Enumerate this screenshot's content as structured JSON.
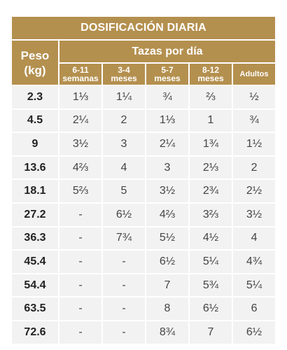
{
  "title": "DOSIFICACIÓN DIARIA",
  "peso_header": {
    "line1": "Peso",
    "line2": "(kg)"
  },
  "tazas_header": "Tazas por día",
  "columns": [
    {
      "line1": "6-11",
      "line2": "semanas"
    },
    {
      "line1": "3-4",
      "line2": "meses"
    },
    {
      "line1": "5-7",
      "line2": "meses"
    },
    {
      "line1": "8-12",
      "line2": "meses"
    },
    {
      "line1": "Adultos",
      "line2": ""
    }
  ],
  "rows": [
    {
      "peso": "2.3",
      "values": [
        "1⅓",
        "1¼",
        "¾",
        "⅔",
        "½"
      ]
    },
    {
      "peso": "4.5",
      "values": [
        "2¼",
        "2",
        "1⅓",
        "1",
        "¾"
      ]
    },
    {
      "peso": "9",
      "values": [
        "3½",
        "3",
        "2¼",
        "1¾",
        "1½"
      ]
    },
    {
      "peso": "13.6",
      "values": [
        "4⅔",
        "4",
        "3",
        "2⅓",
        "2"
      ]
    },
    {
      "peso": "18.1",
      "values": [
        "5⅔",
        "5",
        "3½",
        "2¾",
        "2½"
      ]
    },
    {
      "peso": "27.2",
      "values": [
        "-",
        "6½",
        "4⅔",
        "3⅔",
        "3½"
      ]
    },
    {
      "peso": "36.3",
      "values": [
        "-",
        "7¾",
        "5½",
        "4½",
        "4"
      ]
    },
    {
      "peso": "45.4",
      "values": [
        "-",
        "-",
        "6½",
        "5¼",
        "4¾"
      ]
    },
    {
      "peso": "54.4",
      "values": [
        "-",
        "-",
        "7",
        "5¾",
        "5¼"
      ]
    },
    {
      "peso": "63.5",
      "values": [
        "-",
        "-",
        "8",
        "6½",
        "6"
      ]
    },
    {
      "peso": "72.6",
      "values": [
        "-",
        "-",
        "8¾",
        "7",
        "6½"
      ]
    }
  ]
}
